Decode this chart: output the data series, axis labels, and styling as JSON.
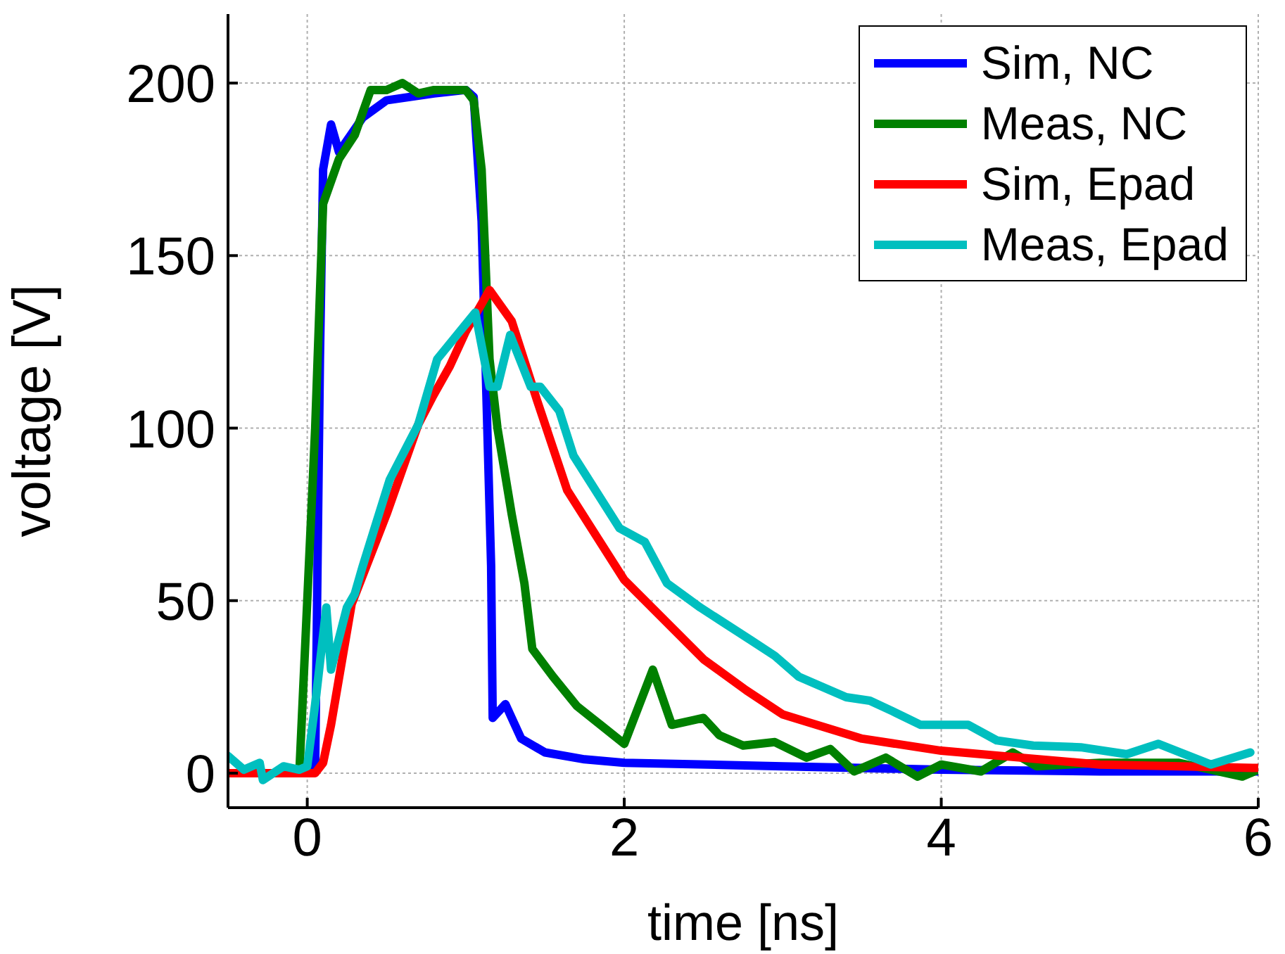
{
  "chart_data": {
    "type": "line",
    "xlabel": "time [ns]",
    "ylabel": "voltage [V]",
    "xlim": [
      -0.5,
      6
    ],
    "ylim": [
      -10,
      220
    ],
    "xticks": [
      0,
      2,
      4,
      6
    ],
    "yticks": [
      0,
      50,
      100,
      150,
      200
    ],
    "grid": true,
    "legend": "top right",
    "line_style": "solid",
    "marker": "none",
    "series": [
      {
        "name": "Sim, NC",
        "color": "#0000ff",
        "x": [
          -0.5,
          0,
          0.05,
          0.08,
          0.1,
          0.15,
          0.2,
          0.35,
          0.5,
          0.8,
          1.0,
          1.05,
          1.1,
          1.16,
          1.17,
          1.25,
          1.35,
          1.5,
          1.75,
          2.0,
          3,
          4,
          5,
          6
        ],
        "values": [
          0,
          0,
          2,
          120,
          175,
          188,
          180,
          190,
          195,
          197,
          198,
          196,
          160,
          60,
          16,
          20,
          10,
          6,
          4,
          3,
          2,
          1,
          0.5,
          0.5
        ]
      },
      {
        "name": "Meas, NC",
        "color": "#008000",
        "x": [
          -0.5,
          -0.05,
          0.05,
          0.1,
          0.2,
          0.3,
          0.4,
          0.5,
          0.6,
          0.7,
          0.8,
          1.0,
          1.05,
          1.1,
          1.15,
          1.2,
          1.29,
          1.37,
          1.42,
          1.55,
          1.7,
          1.85,
          2.0,
          2.18,
          2.3,
          2.5,
          2.6,
          2.75,
          2.95,
          3.15,
          3.3,
          3.45,
          3.65,
          3.85,
          4.0,
          4.25,
          4.45,
          4.6,
          5.0,
          5.5,
          5.9,
          6
        ],
        "values": [
          0,
          0,
          100,
          165,
          178,
          185,
          198,
          198,
          200,
          197,
          198,
          198,
          195,
          175,
          120,
          100,
          75,
          55,
          36,
          28,
          19.5,
          14,
          8.5,
          30,
          14,
          16,
          11,
          8,
          9,
          4.5,
          7,
          0.5,
          4.5,
          -1,
          2.5,
          0.5,
          6,
          2,
          3,
          3,
          -1,
          1
        ]
      },
      {
        "name": "Sim, Epad",
        "color": "#ff0000",
        "x": [
          -0.5,
          0.05,
          0.1,
          0.15,
          0.28,
          0.5,
          0.7,
          0.79,
          0.9,
          1.0,
          1.15,
          1.29,
          1.45,
          1.64,
          2.0,
          2.5,
          2.77,
          3.0,
          3.5,
          4.0,
          4.5,
          5.0,
          6
        ],
        "values": [
          0,
          0,
          3,
          14,
          49,
          75,
          101,
          109,
          118,
          128,
          140,
          131,
          108,
          82,
          56,
          33,
          24,
          17,
          10,
          6.5,
          4.5,
          2.5,
          1.5
        ]
      },
      {
        "name": "Meas, Epad",
        "color": "#00bfbf",
        "x": [
          -0.5,
          -0.4,
          -0.3,
          -0.28,
          -0.15,
          -0.05,
          0,
          0.05,
          0.1,
          0.12,
          0.15,
          0.25,
          0.3,
          0.35,
          0.52,
          0.7,
          0.82,
          1.06,
          1.15,
          1.2,
          1.28,
          1.41,
          1.47,
          1.59,
          1.68,
          1.97,
          2.13,
          2.27,
          2.48,
          2.8,
          2.95,
          3.1,
          3.4,
          3.55,
          3.69,
          3.87,
          4.17,
          4.35,
          4.58,
          4.88,
          5.17,
          5.37,
          5.7,
          5.95
        ],
        "values": [
          5,
          1,
          3,
          -2,
          2,
          1,
          2,
          20,
          40,
          48,
          30,
          48,
          52,
          60,
          85,
          101,
          120,
          133.5,
          112,
          112,
          127,
          112,
          112,
          105,
          92,
          71,
          67,
          55,
          48,
          38.5,
          34,
          28,
          22,
          21,
          18,
          14,
          14,
          9.5,
          8,
          7.5,
          5.5,
          8.5,
          2.5,
          6
        ]
      }
    ]
  }
}
